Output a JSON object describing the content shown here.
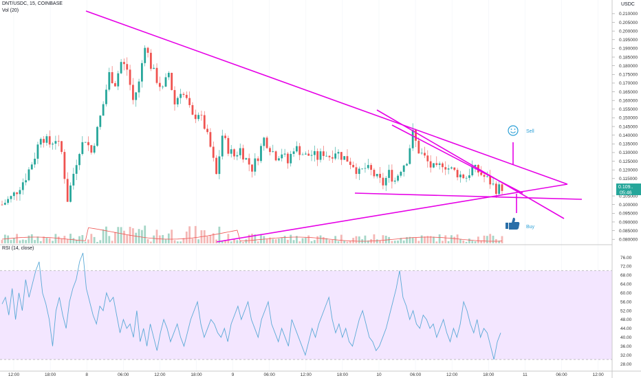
{
  "header": {
    "symbol": "DNT/USDC, 15, COINBASE",
    "volume": "Vol (20)",
    "rsi": "RSI (14, close)",
    "currency": "USDC"
  },
  "price_label": "0.109..",
  "countdown": "05:46",
  "annotations": {
    "sell": "Sell",
    "buy": "Buy"
  },
  "colors": {
    "up": "#26a69a",
    "down": "#ef5350",
    "trendline": "#e600e6",
    "rsi_line": "#5aa9d6",
    "rsi_band": "#f3e6ff",
    "ma": "#ef5350",
    "annotation": "#2a9fd6",
    "vol_up": "#a5d6c7",
    "vol_down": "#f4b7b5"
  },
  "icons": {
    "sell": "smiley-icon",
    "buy": "thumbs-up-icon"
  },
  "chart_data": [
    {
      "type": "candlestick",
      "title": "DNT/USDC, 15, COINBASE",
      "ylabel": "USDC",
      "yticks": [
        "0.210000",
        "0.205000",
        "0.200000",
        "0.195000",
        "0.190000",
        "0.185000",
        "0.180000",
        "0.175000",
        "0.170000",
        "0.165000",
        "0.160000",
        "0.155000",
        "0.150000",
        "0.145000",
        "0.140000",
        "0.135000",
        "0.130000",
        "0.125000",
        "0.120000",
        "0.115000",
        "0.105000",
        "0.100000",
        "0.095000",
        "0.090000",
        "0.085000",
        "0.080000"
      ],
      "ylim": [
        0.0785,
        0.2155
      ],
      "xticks": [
        "12:00",
        "18:00",
        "8",
        "06:00",
        "12:00",
        "18:00",
        "9",
        "06:00",
        "12:00",
        "18:00",
        "10",
        "06:00",
        "12:00",
        "18:00",
        "11",
        "06:00",
        "12:00"
      ],
      "last_price": 0.1096,
      "close_path": [
        {
          "t": 0,
          "p": 0.1
        },
        {
          "t": 3,
          "p": 0.104
        },
        {
          "t": 5,
          "p": 0.108
        },
        {
          "t": 8,
          "p": 0.116
        },
        {
          "t": 11,
          "p": 0.128
        },
        {
          "t": 13,
          "p": 0.14
        },
        {
          "t": 16,
          "p": 0.135
        },
        {
          "t": 18,
          "p": 0.138
        },
        {
          "t": 20,
          "p": 0.13
        },
        {
          "t": 22,
          "p": 0.103
        },
        {
          "t": 24,
          "p": 0.118
        },
        {
          "t": 26,
          "p": 0.132
        },
        {
          "t": 28,
          "p": 0.138
        },
        {
          "t": 30,
          "p": 0.13
        },
        {
          "t": 32,
          "p": 0.143
        },
        {
          "t": 34,
          "p": 0.158
        },
        {
          "t": 36,
          "p": 0.175
        },
        {
          "t": 38,
          "p": 0.17
        },
        {
          "t": 40,
          "p": 0.182
        },
        {
          "t": 42,
          "p": 0.178
        },
        {
          "t": 44,
          "p": 0.16
        },
        {
          "t": 46,
          "p": 0.17
        },
        {
          "t": 48,
          "p": 0.193
        },
        {
          "t": 50,
          "p": 0.18
        },
        {
          "t": 52,
          "p": 0.172
        },
        {
          "t": 54,
          "p": 0.166
        },
        {
          "t": 56,
          "p": 0.176
        },
        {
          "t": 58,
          "p": 0.158
        },
        {
          "t": 60,
          "p": 0.166
        },
        {
          "t": 62,
          "p": 0.16
        },
        {
          "t": 64,
          "p": 0.15
        },
        {
          "t": 66,
          "p": 0.153
        },
        {
          "t": 68,
          "p": 0.145
        },
        {
          "t": 70,
          "p": 0.133
        },
        {
          "t": 72,
          "p": 0.117
        },
        {
          "t": 74,
          "p": 0.14
        },
        {
          "t": 76,
          "p": 0.132
        },
        {
          "t": 78,
          "p": 0.128
        },
        {
          "t": 80,
          "p": 0.132
        },
        {
          "t": 82,
          "p": 0.126
        },
        {
          "t": 84,
          "p": 0.121
        },
        {
          "t": 86,
          "p": 0.128
        },
        {
          "t": 88,
          "p": 0.138
        },
        {
          "t": 90,
          "p": 0.133
        },
        {
          "t": 92,
          "p": 0.128
        },
        {
          "t": 94,
          "p": 0.13
        },
        {
          "t": 96,
          "p": 0.124
        },
        {
          "t": 98,
          "p": 0.133
        },
        {
          "t": 100,
          "p": 0.131
        },
        {
          "t": 102,
          "p": 0.128
        },
        {
          "t": 104,
          "p": 0.129
        },
        {
          "t": 106,
          "p": 0.127
        },
        {
          "t": 108,
          "p": 0.13
        },
        {
          "t": 110,
          "p": 0.128
        },
        {
          "t": 112,
          "p": 0.131
        },
        {
          "t": 114,
          "p": 0.128
        },
        {
          "t": 116,
          "p": 0.126
        },
        {
          "t": 118,
          "p": 0.123
        },
        {
          "t": 120,
          "p": 0.118
        },
        {
          "t": 122,
          "p": 0.121
        },
        {
          "t": 124,
          "p": 0.119
        },
        {
          "t": 126,
          "p": 0.115
        },
        {
          "t": 128,
          "p": 0.112
        },
        {
          "t": 130,
          "p": 0.118
        },
        {
          "t": 132,
          "p": 0.114
        },
        {
          "t": 134,
          "p": 0.121
        },
        {
          "t": 136,
          "p": 0.126
        },
        {
          "t": 138,
          "p": 0.141
        },
        {
          "t": 140,
          "p": 0.131
        },
        {
          "t": 142,
          "p": 0.127
        },
        {
          "t": 144,
          "p": 0.122
        },
        {
          "t": 146,
          "p": 0.12
        },
        {
          "t": 148,
          "p": 0.124
        },
        {
          "t": 150,
          "p": 0.121
        },
        {
          "t": 152,
          "p": 0.119
        },
        {
          "t": 154,
          "p": 0.117
        },
        {
          "t": 156,
          "p": 0.116
        },
        {
          "t": 158,
          "p": 0.121
        },
        {
          "t": 160,
          "p": 0.119
        },
        {
          "t": 162,
          "p": 0.116
        },
        {
          "t": 164,
          "p": 0.113
        },
        {
          "t": 166,
          "p": 0.109
        },
        {
          "t": 168,
          "p": 0.11
        }
      ]
    },
    {
      "type": "line",
      "title": "RSI (14, close)",
      "yticks": [
        "76.00",
        "72.00",
        "68.00",
        "64.00",
        "60.00",
        "56.00",
        "52.00",
        "48.00",
        "44.00",
        "40.00",
        "36.00",
        "32.00",
        "28.00"
      ],
      "ylim": [
        26,
        78
      ],
      "band": [
        30,
        70
      ],
      "values": [
        55,
        58,
        50,
        62,
        48,
        60,
        52,
        66,
        58,
        64,
        70,
        74,
        60,
        55,
        48,
        36,
        52,
        58,
        50,
        44,
        56,
        62,
        66,
        74,
        78,
        62,
        56,
        50,
        46,
        54,
        52,
        60,
        56,
        58,
        50,
        42,
        48,
        44,
        46,
        40,
        52,
        38,
        44,
        36,
        46,
        40,
        34,
        42,
        48,
        44,
        38,
        42,
        46,
        40,
        36,
        42,
        48,
        52,
        56,
        46,
        40,
        44,
        48,
        46,
        42,
        40,
        44,
        38,
        46,
        50,
        54,
        48,
        52,
        56,
        48,
        44,
        40,
        48,
        52,
        56,
        46,
        42,
        38,
        44,
        40,
        36,
        48,
        44,
        40,
        36,
        32,
        38,
        44,
        40,
        46,
        50,
        54,
        58,
        48,
        42,
        46,
        40,
        44,
        38,
        36,
        42,
        48,
        52,
        46,
        40,
        38,
        34,
        36,
        40,
        44,
        50,
        56,
        62,
        70,
        58,
        54,
        48,
        52,
        46,
        44,
        50,
        48,
        44,
        46,
        40,
        44,
        48,
        42,
        38,
        44,
        40,
        46,
        56,
        52,
        46,
        42,
        48,
        40,
        44,
        42,
        36,
        30,
        38,
        42
      ]
    }
  ]
}
